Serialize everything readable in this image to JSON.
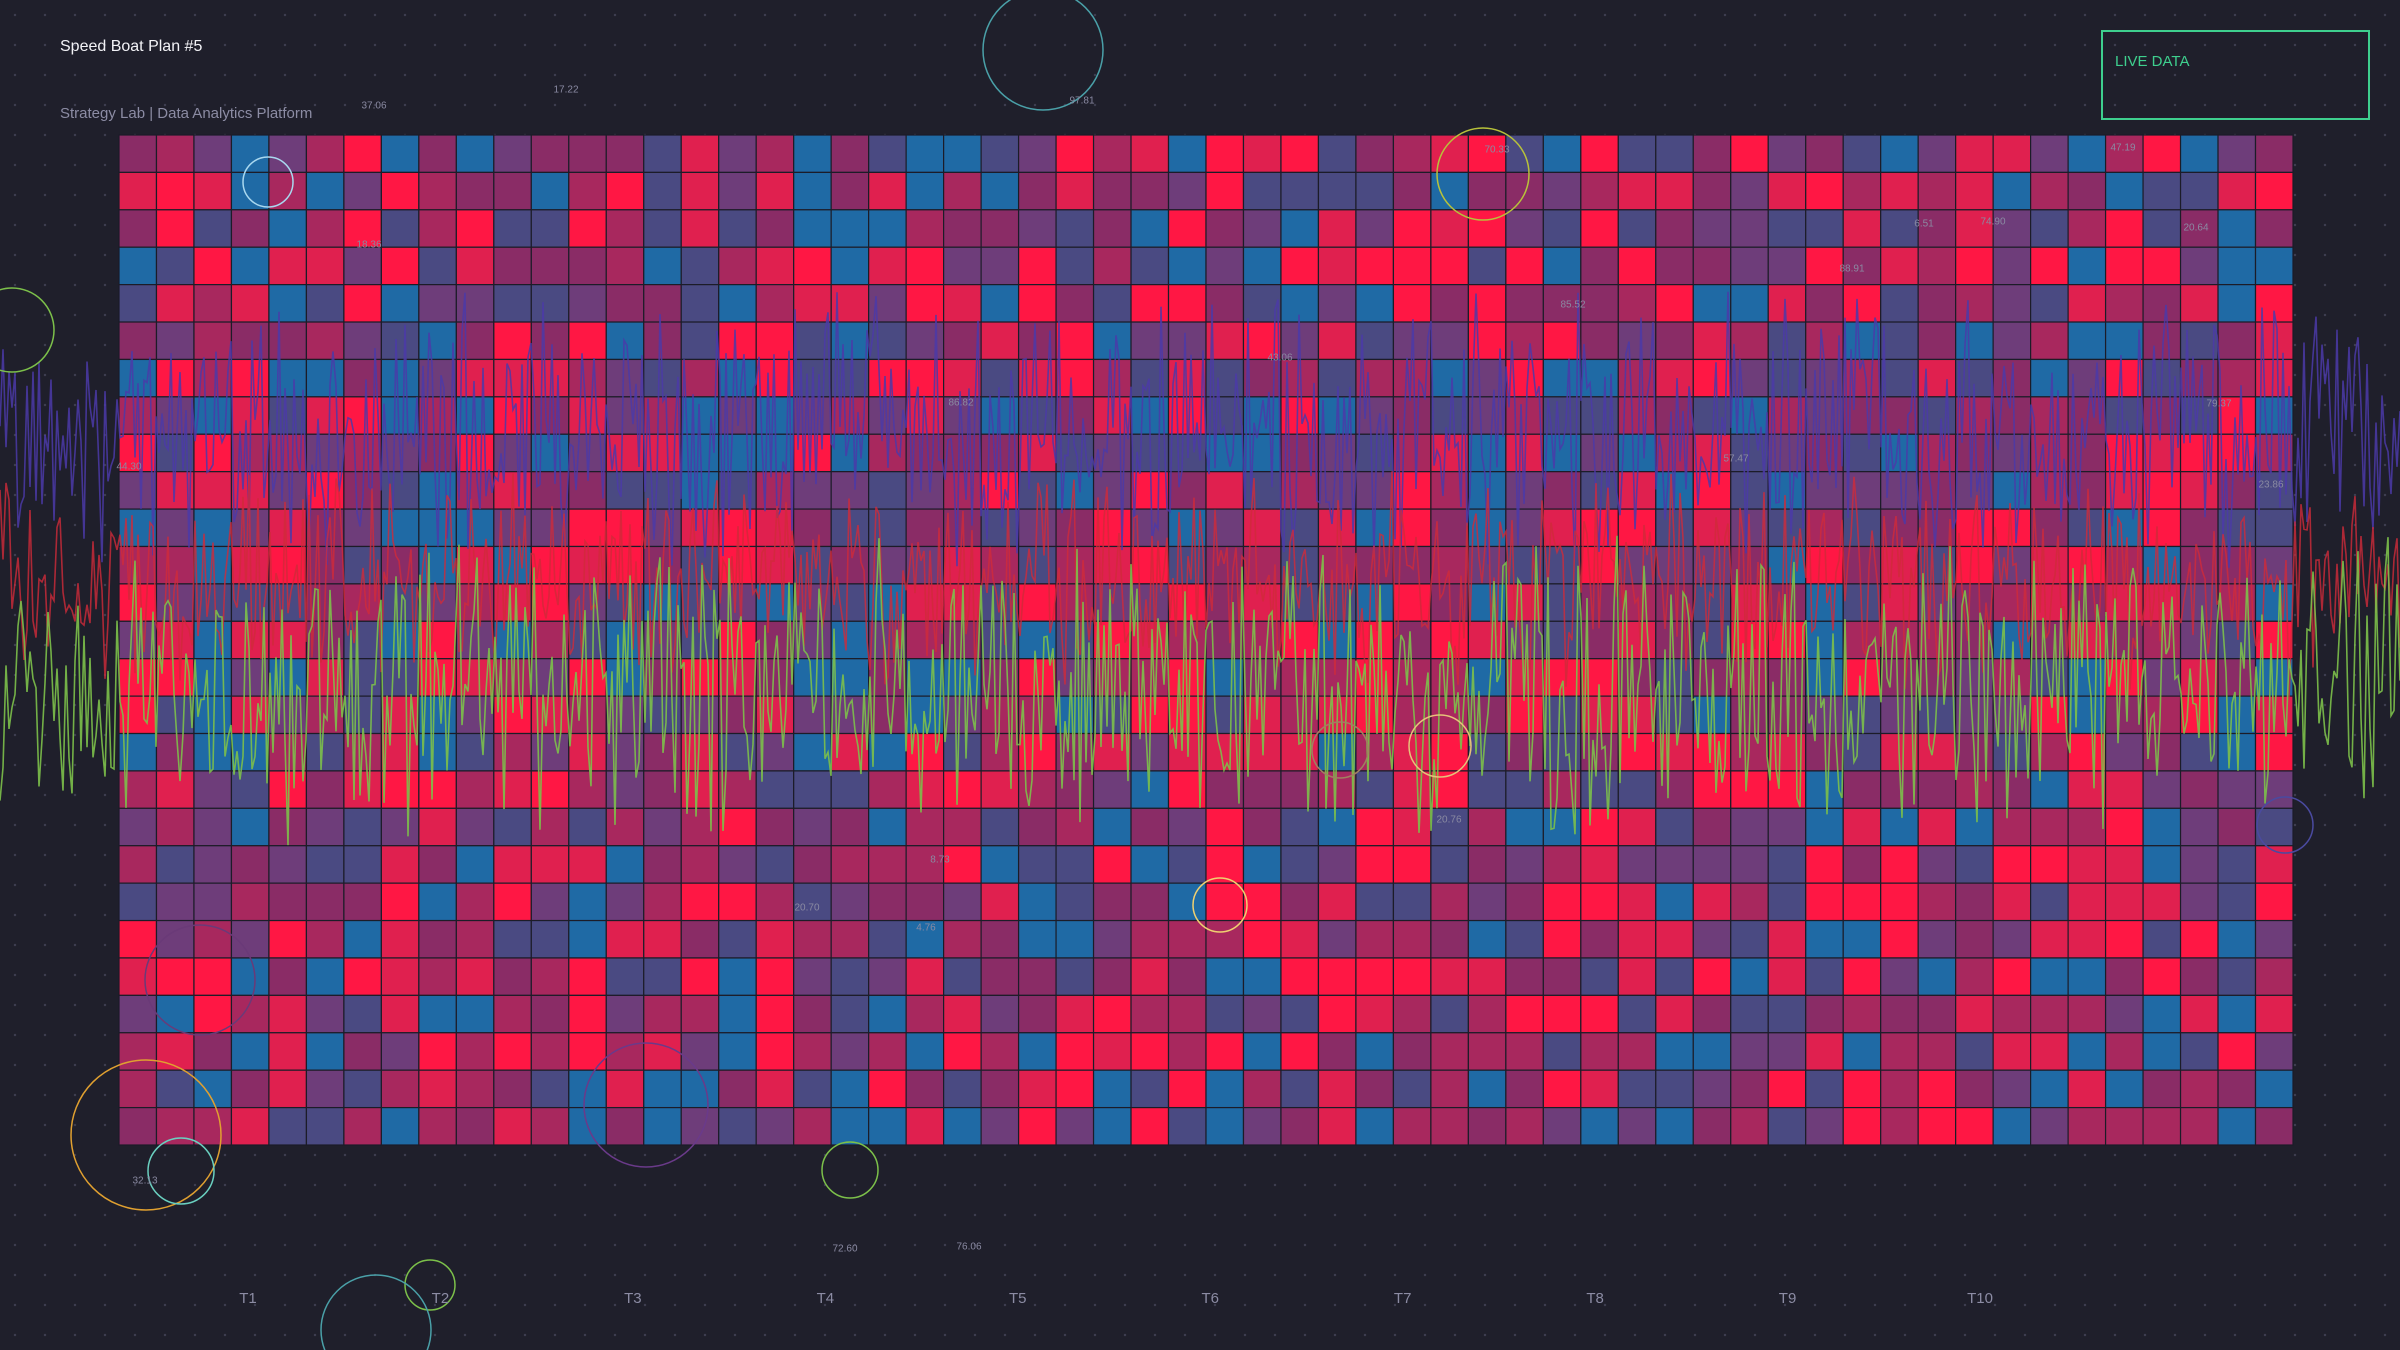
{
  "header": {
    "title": "Speed Boat Plan #5",
    "subtitle": "Strategy Lab | Data Analytics Platform"
  },
  "badge": {
    "label": "LIVE DATA"
  },
  "x_labels": [
    "T1",
    "T2",
    "T3",
    "T4",
    "T5",
    "T6",
    "T7",
    "T8",
    "T9",
    "T10"
  ],
  "annotations": [
    "37.06",
    "17.22",
    "97.81",
    "70.33",
    "47.19",
    "18.36",
    "6.51",
    "74.90",
    "20.64",
    "88.91",
    "85.52",
    "43.06",
    "86.82",
    "44.30",
    "57.47",
    "79.37",
    "23.86",
    "20.76",
    "8.73",
    "20.70",
    "4.76",
    "32.13",
    "72.60",
    "76.06"
  ]
}
